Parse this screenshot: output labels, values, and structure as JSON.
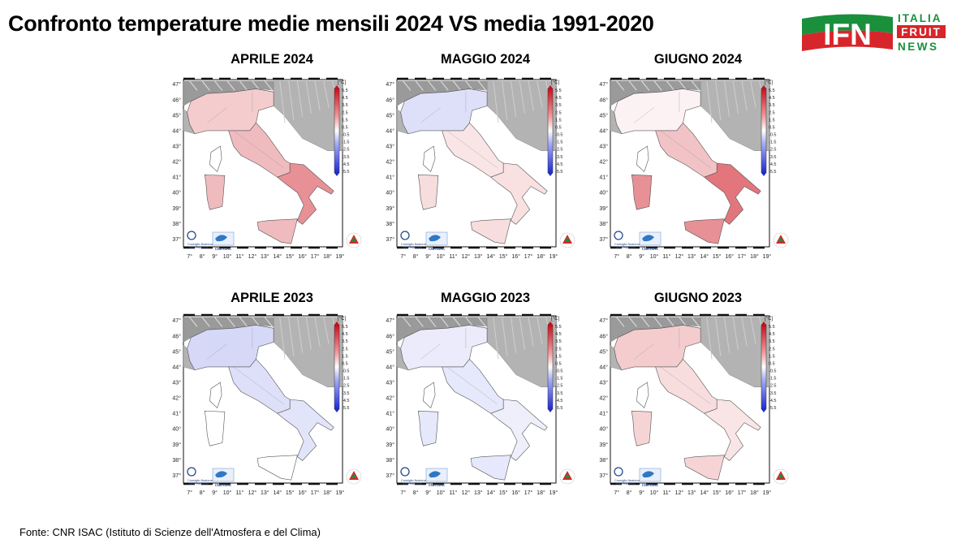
{
  "header": {
    "title": "Confronto temperature medie mensili 2024 VS media 1991-2020"
  },
  "logo": {
    "letters": "IFN",
    "line1": "ITALIA",
    "line2": "FRUIT",
    "line3": "NEWS",
    "colors": {
      "green": "#1a8f3c",
      "red": "#d7262b"
    }
  },
  "legend": {
    "unit": "[°C]",
    "ticks": [
      "5.5",
      "4.5",
      "3.5",
      "2.5",
      "1.5",
      "0.5",
      "-0.5",
      "-1.5",
      "-2.5",
      "-3.5",
      "-4.5",
      "-5.5"
    ]
  },
  "axes": {
    "lon_labels": [
      "7°",
      "8°",
      "9°",
      "10°",
      "11°",
      "12°",
      "13°",
      "14°",
      "15°",
      "16°",
      "17°",
      "18°",
      "19°"
    ],
    "lat_labels": [
      "47°",
      "46°",
      "45°",
      "44°",
      "43°",
      "42°",
      "41°",
      "40°",
      "39°",
      "38°",
      "37°"
    ]
  },
  "map_credits": {
    "org_line1": "Consiglio Nazionale",
    "org_line2": "delle Ricerche",
    "isac": "CNR ISAC"
  },
  "panels": [
    {
      "title": "APRILE 2024",
      "anomaly": {
        "north": 1.2,
        "center": 1.6,
        "south": 2.6,
        "islands": 1.6
      }
    },
    {
      "title": "MAGGIO 2024",
      "anomaly": {
        "north": -0.8,
        "center": 0.6,
        "south": 0.7,
        "islands": 0.8
      }
    },
    {
      "title": "GIUGNO 2024",
      "anomaly": {
        "north": 0.3,
        "center": 1.4,
        "south": 3.2,
        "islands": 2.6
      }
    },
    {
      "title": "APRILE 2023",
      "anomaly": {
        "north": -1.0,
        "center": -0.8,
        "south": -0.7,
        "islands": 0.1
      }
    },
    {
      "title": "MAGGIO 2023",
      "anomaly": {
        "north": -0.5,
        "center": -0.6,
        "south": -0.4,
        "islands": -0.6
      }
    },
    {
      "title": "GIUGNO 2023",
      "anomaly": {
        "north": 1.2,
        "center": 0.8,
        "south": 0.6,
        "islands": 1.0
      }
    }
  ],
  "footer": {
    "source": "Fonte: CNR ISAC (Istituto di Scienze dell'Atmosfera e del Clima)"
  }
}
